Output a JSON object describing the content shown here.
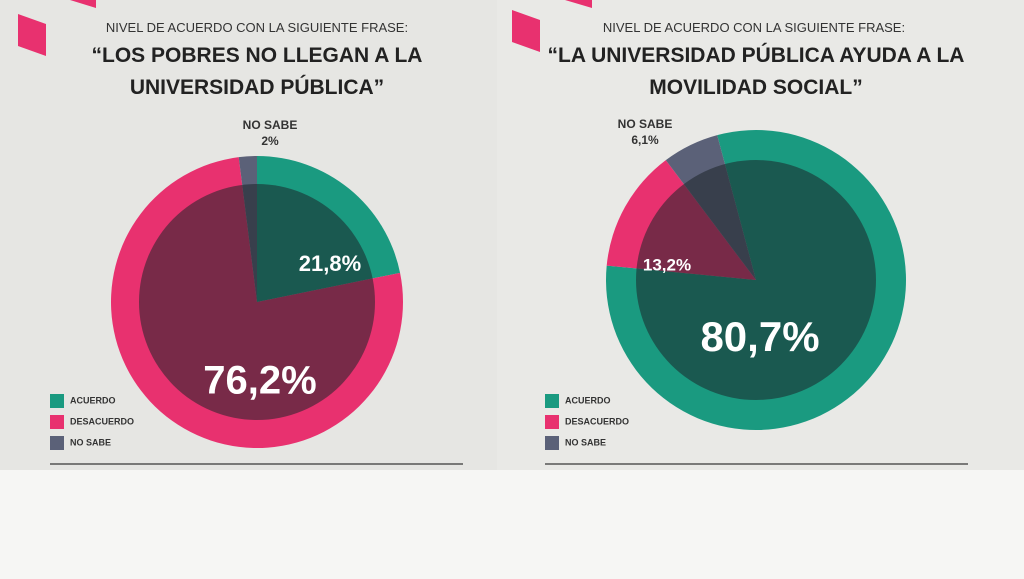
{
  "chart_data": [
    {
      "type": "pie",
      "subtitle": "NIVEL DE ACUERDO CON LA SIGUIENTE FRASE:",
      "title": "“LOS POBRES NO LLEGAN A LA UNIVERSIDAD PÚBLICA”",
      "categories": [
        "ACUERDO",
        "DESACUERDO",
        "NO SABE"
      ],
      "values": [
        21.8,
        76.2,
        2
      ],
      "value_labels": [
        "21,8%",
        "76,2%",
        "2%"
      ],
      "colors": [
        "#1a9a80",
        "#e8316f",
        "#5b6178"
      ]
    },
    {
      "type": "pie",
      "subtitle": "NIVEL DE ACUERDO CON LA SIGUIENTE FRASE:",
      "title": "“LA UNIVERSIDAD PÚBLICA AYUDA A LA MOVILIDAD SOCIAL”",
      "categories": [
        "ACUERDO",
        "DESACUERDO",
        "NO SABE"
      ],
      "values": [
        80.7,
        13.2,
        6.1
      ],
      "value_labels": [
        "80,7%",
        "13,2%",
        "6,1%"
      ],
      "colors": [
        "#1a9a80",
        "#e8316f",
        "#5b6178"
      ]
    }
  ]
}
